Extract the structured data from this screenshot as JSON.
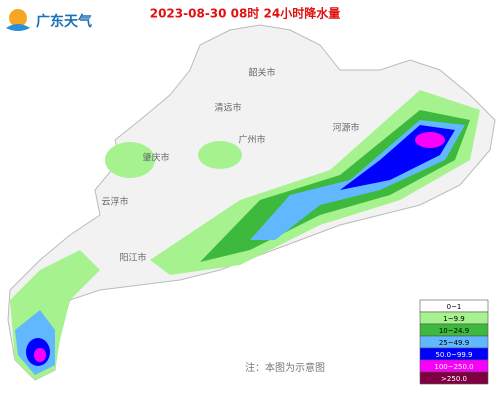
{
  "header": {
    "logo_text": "广东天气",
    "title": "2023-08-30 08时 24小时降水量"
  },
  "cities": [
    "韶关市",
    "清远市",
    "河源市",
    "肇庆市",
    "广州市",
    "云浮市",
    "阳江市"
  ],
  "legend": [
    {
      "label": "0~1",
      "color": "#ffffff"
    },
    {
      "label": "1~9.9",
      "color": "#a6f28f"
    },
    {
      "label": "10~24.9",
      "color": "#3dba3d"
    },
    {
      "label": "25~49.9",
      "color": "#61b8ff"
    },
    {
      "label": "50.0~99.9",
      "color": "#0000fe"
    },
    {
      "label": "100~250.0",
      "color": "#fa00fa"
    },
    {
      "label": ">250.0",
      "color": "#7f0040"
    }
  ],
  "note": "注：本图为示意图"
}
